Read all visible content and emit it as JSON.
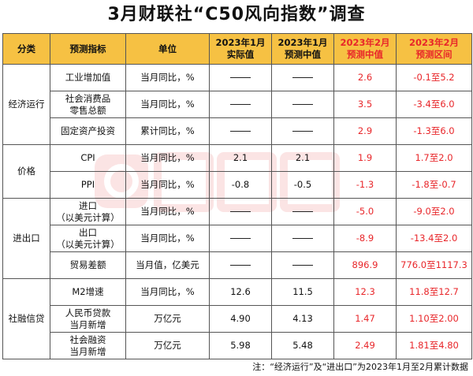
{
  "title": "3月财联社“C50风向指数”调查",
  "watermark": "财联社",
  "colors": {
    "header_bg": "#f6c143",
    "forecast_text": "#e8262a"
  },
  "headers": [
    "分类",
    "预测指标",
    "单位",
    "2023年1月\n实际值",
    "2023年1月\n预测中值",
    "2023年2月\n预测中值",
    "2023年2月\n预测区间"
  ],
  "groups": [
    {
      "category": "经济运行",
      "rows": [
        {
          "indicator": "工业增加值",
          "unit": "当月同比，%",
          "jan_actual": "——",
          "jan_forecast": "——",
          "feb_median": "2.6",
          "feb_range": "-0.1至5.2"
        },
        {
          "indicator": "社会消费品\n零售总额",
          "unit": "当月同比，%",
          "jan_actual": "——",
          "jan_forecast": "——",
          "feb_median": "3.5",
          "feb_range": "-3.4至6.0"
        },
        {
          "indicator": "固定资产投资",
          "unit": "累计同比，%",
          "jan_actual": "——",
          "jan_forecast": "——",
          "feb_median": "2.9",
          "feb_range": "-1.3至6.0"
        }
      ]
    },
    {
      "category": "价格",
      "rows": [
        {
          "indicator": "CPI",
          "unit": "当月同比，%",
          "jan_actual": "2.1",
          "jan_forecast": "2.1",
          "feb_median": "1.9",
          "feb_range": "1.7至2.0"
        },
        {
          "indicator": "PPI",
          "unit": "当月同比，%",
          "jan_actual": "-0.8",
          "jan_forecast": "-0.5",
          "feb_median": "-1.3",
          "feb_range": "-1.8至-0.7"
        }
      ]
    },
    {
      "category": "进出口",
      "rows": [
        {
          "indicator": "进口\n（以美元计算）",
          "unit": "当月同比，%",
          "jan_actual": "——",
          "jan_forecast": "——",
          "feb_median": "-5.0",
          "feb_range": "-9.0至2.0"
        },
        {
          "indicator": "出口\n（以美元计算）",
          "unit": "当月同比，%",
          "jan_actual": "——",
          "jan_forecast": "——",
          "feb_median": "-8.9",
          "feb_range": "-13.4至2.0"
        },
        {
          "indicator": "贸易差额",
          "unit": "当月值，亿美元",
          "jan_actual": "——",
          "jan_forecast": "——",
          "feb_median": "896.9",
          "feb_range": "776.0至1117.3"
        }
      ]
    },
    {
      "category": "社融信贷",
      "rows": [
        {
          "indicator": "M2增速",
          "unit": "当月同比，%",
          "jan_actual": "12.6",
          "jan_forecast": "11.5",
          "feb_median": "12.3",
          "feb_range": "11.8至12.7"
        },
        {
          "indicator": "人民币贷款\n当月新增",
          "unit": "万亿元",
          "jan_actual": "4.90",
          "jan_forecast": "4.13",
          "feb_median": "1.47",
          "feb_range": "1.10至2.00"
        },
        {
          "indicator": "社会融资\n当月新增",
          "unit": "万亿元",
          "jan_actual": "5.98",
          "jan_forecast": "5.48",
          "feb_median": "2.49",
          "feb_range": "1.81至4.80"
        }
      ]
    }
  ],
  "note": "注：“经济运行”及“进出口”为2023年1月至2月累计数据"
}
